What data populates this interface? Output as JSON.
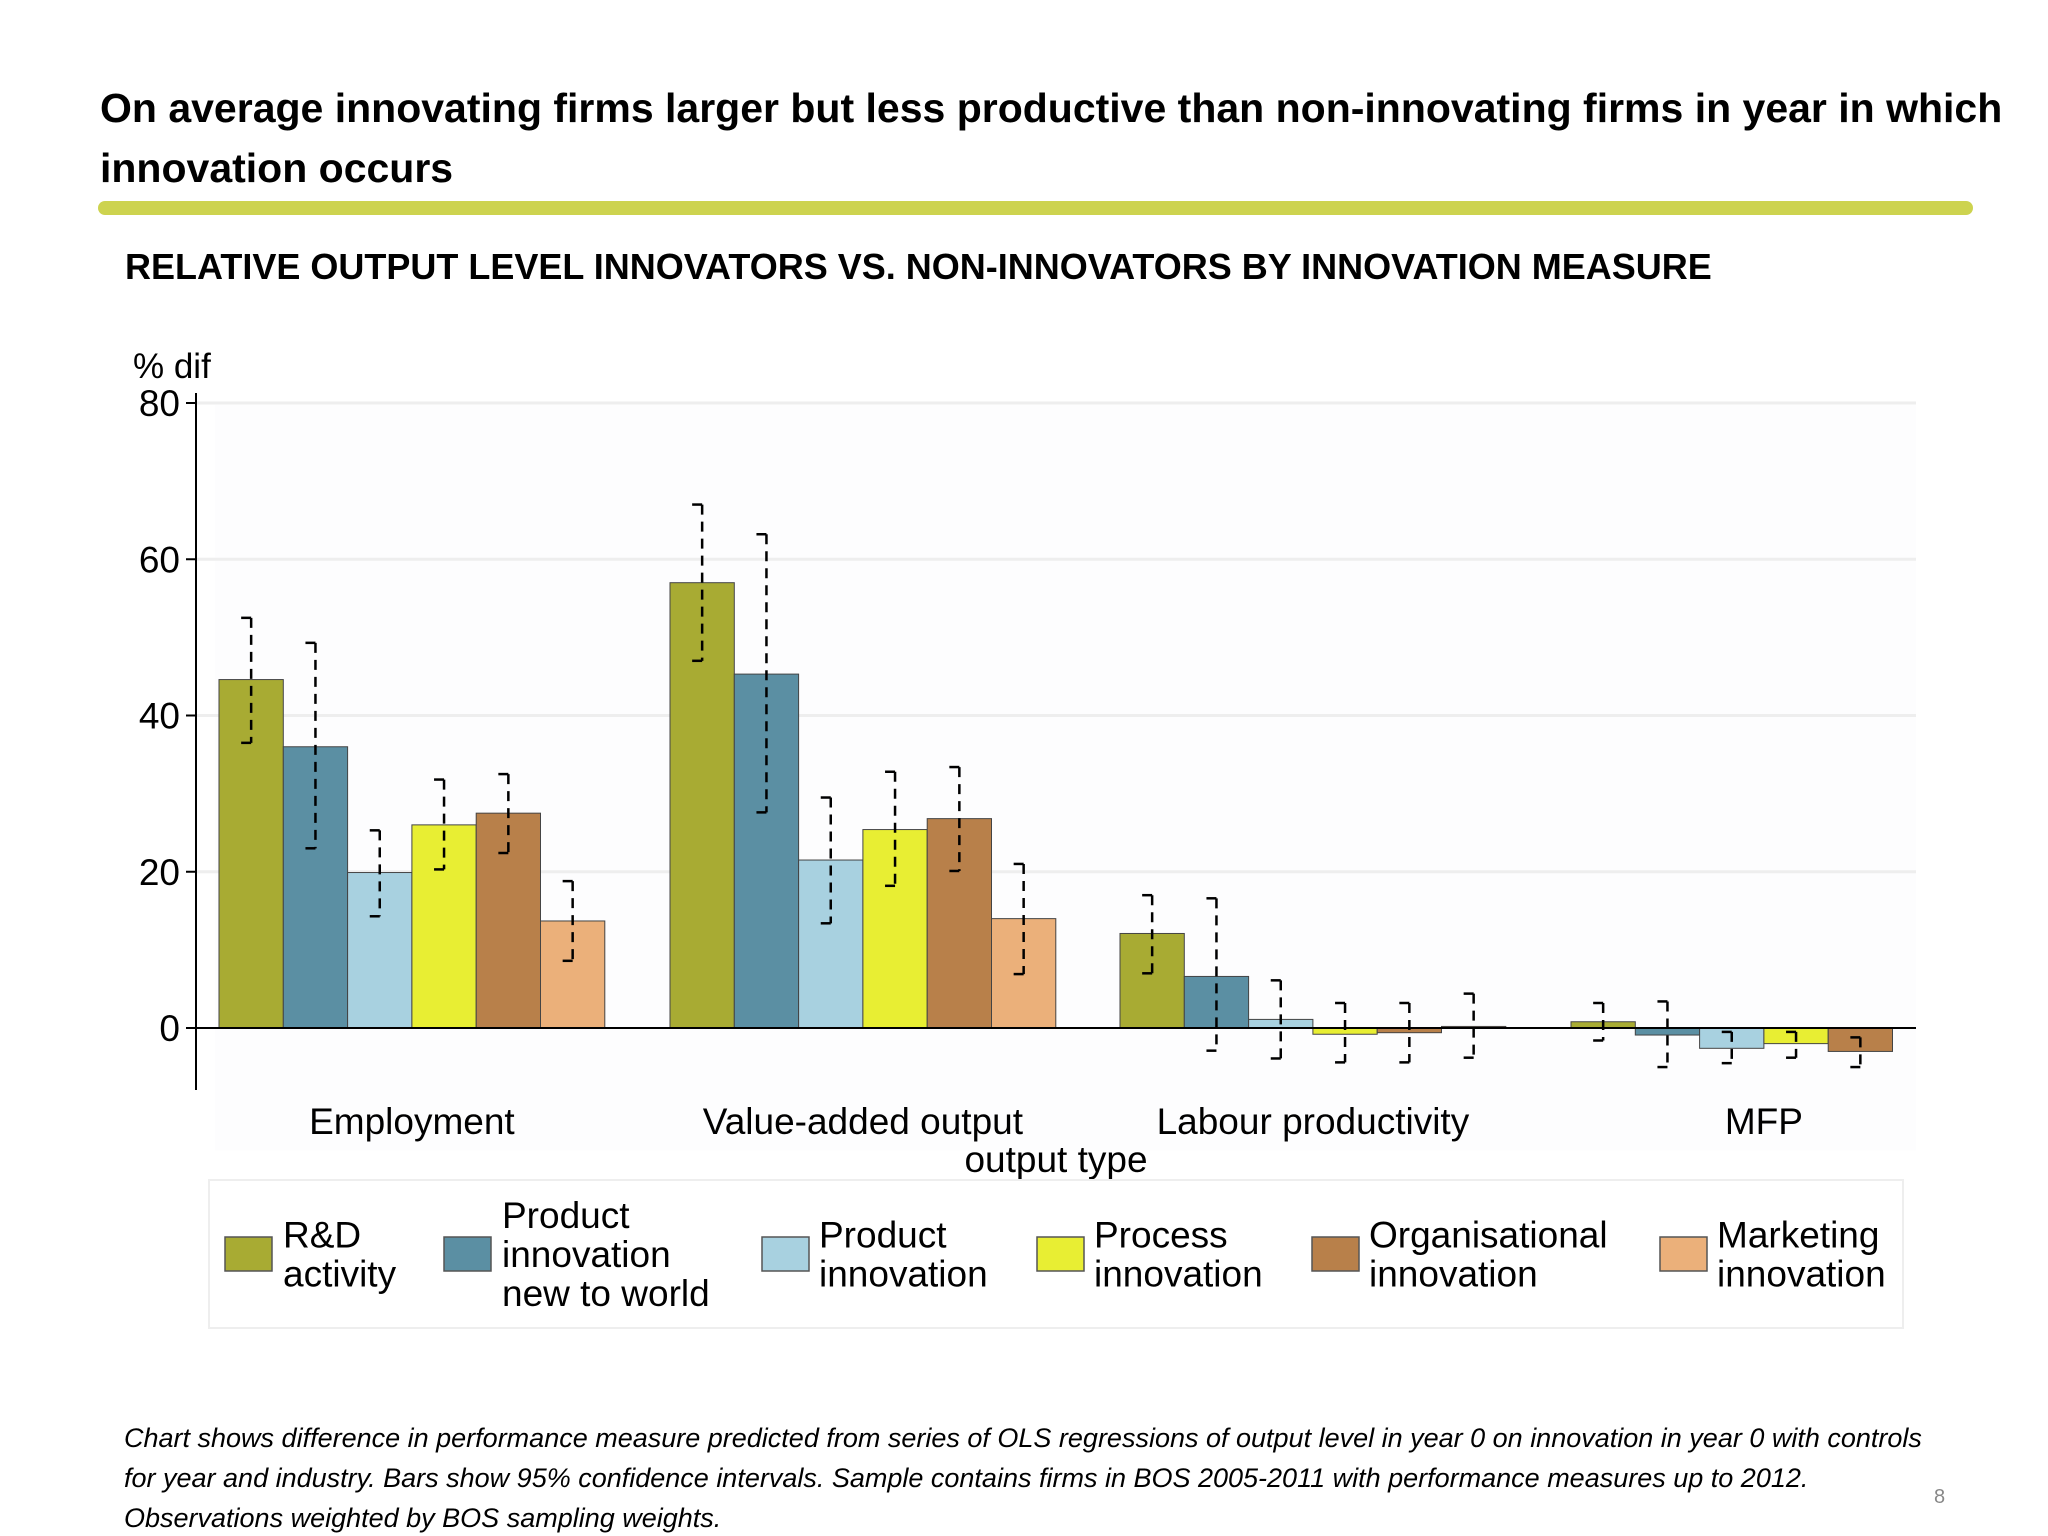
{
  "title": "On average innovating firms larger but less productive than non-innovating firms in year in which innovation occurs",
  "subtitle": "RELATIVE OUTPUT LEVEL INNOVATORS VS. NON-INNOVATORS BY INNOVATION MEASURE",
  "accent_color": "#cdd34f",
  "footnote": "Chart shows difference in performance measure predicted from series of OLS regressions of output level in year 0 on innovation in year 0 with controls for year and industry. Bars show 95% confidence intervals. Sample contains firms in BOS 2005-2011 with performance measures up to 2012. Observations weighted by BOS sampling weights.",
  "page_number": "8",
  "chart_data": {
    "type": "bar",
    "ylabel": "% dif",
    "xlabel": "output type",
    "ylim": [
      -8,
      80
    ],
    "yticks": [
      "0",
      "20",
      "40",
      "60",
      "80"
    ],
    "grid": true,
    "legend_placement": "bottom",
    "categories": [
      "Employment",
      "Value-added output",
      "Labour productivity",
      "MFP"
    ],
    "series": [
      {
        "name": "R&D activity",
        "label_lines": [
          "R&D",
          "activity"
        ],
        "color": "#a8ab33",
        "values": [
          44.6,
          57.0,
          12.1,
          0.8
        ],
        "ci_low": [
          36.5,
          47.0,
          7.0,
          -1.6
        ],
        "ci_high": [
          52.5,
          67.0,
          17.0,
          3.2
        ]
      },
      {
        "name": "Product innovation new to world",
        "label_lines": [
          "Product",
          "innovation",
          "new to world"
        ],
        "color": "#5b8fa3",
        "values": [
          36.0,
          45.3,
          6.6,
          -0.9
        ],
        "ci_low": [
          23.0,
          27.6,
          -2.9,
          -5.0
        ],
        "ci_high": [
          49.3,
          63.2,
          16.6,
          3.4
        ]
      },
      {
        "name": "Product innovation",
        "label_lines": [
          "Product",
          "innovation"
        ],
        "color": "#a8d1e0",
        "values": [
          19.9,
          21.5,
          1.1,
          -2.6
        ],
        "ci_low": [
          14.3,
          13.4,
          -3.9,
          -4.5
        ],
        "ci_high": [
          25.3,
          29.5,
          6.1,
          -0.5
        ]
      },
      {
        "name": "Process innovation",
        "label_lines": [
          "Process",
          "innovation"
        ],
        "color": "#e8ee33",
        "values": [
          26.0,
          25.4,
          -0.8,
          -2.0
        ],
        "ci_low": [
          20.3,
          18.2,
          -4.4,
          -3.8
        ],
        "ci_high": [
          31.8,
          32.8,
          3.2,
          -0.5
        ]
      },
      {
        "name": "Organisational innovation",
        "label_lines": [
          "Organisational",
          "innovation"
        ],
        "color": "#b8804a",
        "values": [
          27.5,
          26.8,
          -0.6,
          -3.0
        ],
        "ci_low": [
          22.4,
          20.1,
          -4.4,
          -5.0
        ],
        "ci_high": [
          32.5,
          33.4,
          3.2,
          -1.2
        ]
      },
      {
        "name": "Marketing innovation",
        "label_lines": [
          "Marketing",
          "innovation"
        ],
        "color": "#ebb07a",
        "values": [
          13.7,
          14.0,
          0.2,
          null
        ],
        "ci_low": [
          8.6,
          6.9,
          -3.8,
          null
        ],
        "ci_high": [
          18.8,
          21.0,
          4.4,
          null
        ]
      }
    ]
  }
}
